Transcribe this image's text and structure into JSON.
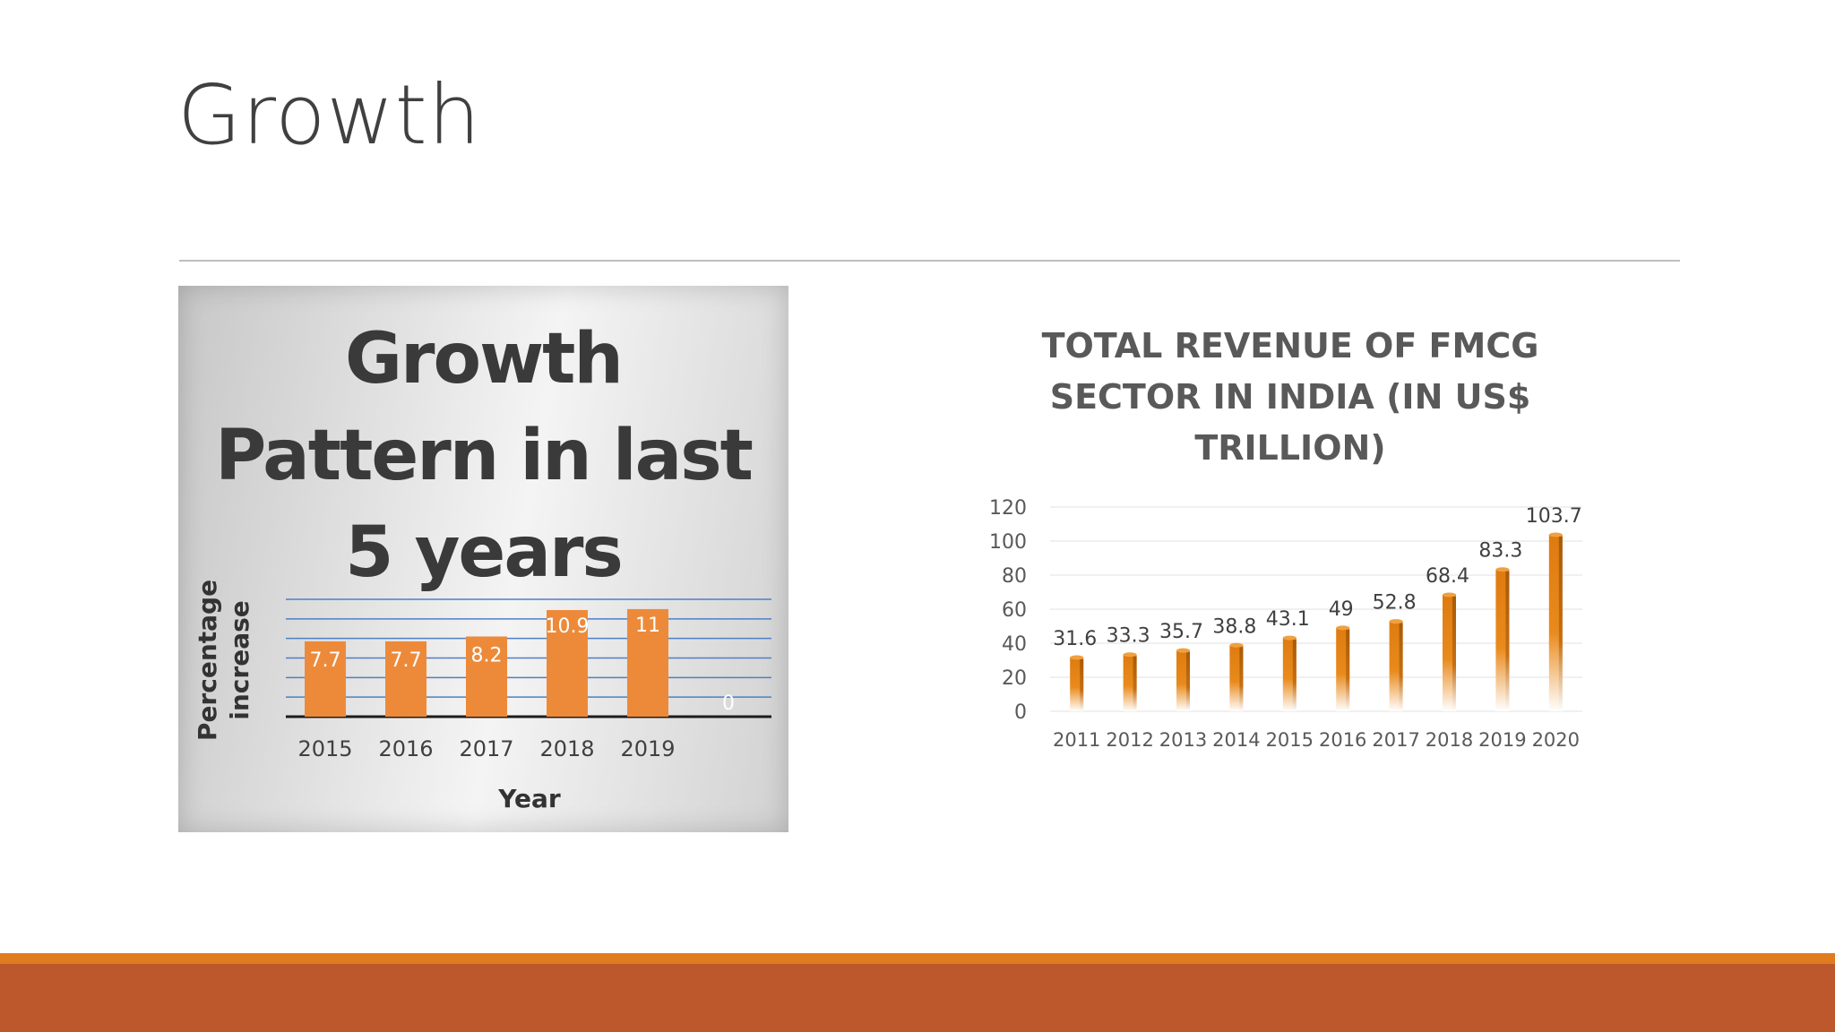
{
  "slide": {
    "title": "Growth"
  },
  "colors": {
    "accent": "#e07b1f",
    "footer": "#bd582c",
    "bar_orange": "#ed8a3a",
    "bar_gold": "#d9770e"
  },
  "photo_chart": {
    "heading": [
      "Growth",
      "Pattern in last",
      "5 years"
    ]
  },
  "chart_data": [
    {
      "type": "bar",
      "title": "Growth Pattern in last 5 years",
      "xlabel": "Year",
      "ylabel": "Percentage increase",
      "categories": [
        "2015",
        "2016",
        "2017",
        "2018",
        "2019",
        ""
      ],
      "values": [
        7.7,
        7.7,
        8.2,
        10.9,
        11,
        0
      ],
      "data_labels": [
        "7.7",
        "7.7",
        "8.2",
        "10.9",
        "11",
        "0"
      ],
      "ylim": [
        0,
        12
      ],
      "grid": true
    },
    {
      "type": "bar",
      "title": "TOTAL REVENUE OF FMCG SECTOR IN INDIA (IN US$ TRILLION)",
      "xlabel": "",
      "ylabel": "",
      "categories": [
        "2011",
        "2012",
        "2013",
        "2014",
        "2015",
        "2016",
        "2017",
        "2018",
        "2019",
        "2020"
      ],
      "values": [
        31.6,
        33.3,
        35.7,
        38.8,
        43.1,
        49,
        52.8,
        68.4,
        83.3,
        103.7
      ],
      "y_ticks": [
        "0",
        "20",
        "40",
        "60",
        "80",
        "100",
        "120"
      ],
      "ylim": [
        0,
        120
      ],
      "grid": true
    }
  ]
}
